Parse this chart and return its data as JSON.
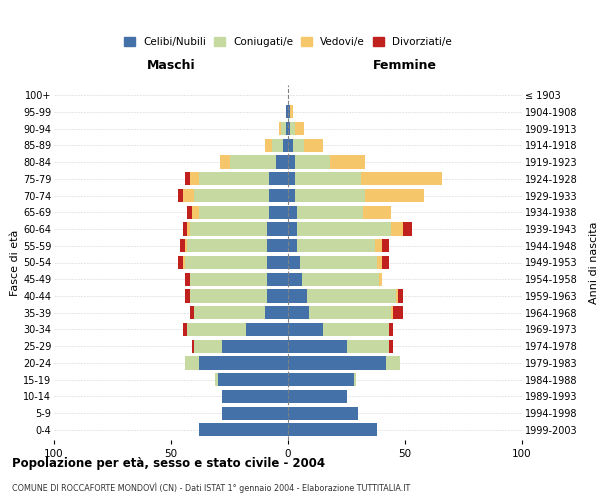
{
  "age_groups": [
    "0-4",
    "5-9",
    "10-14",
    "15-19",
    "20-24",
    "25-29",
    "30-34",
    "35-39",
    "40-44",
    "45-49",
    "50-54",
    "55-59",
    "60-64",
    "65-69",
    "70-74",
    "75-79",
    "80-84",
    "85-89",
    "90-94",
    "95-99",
    "100+"
  ],
  "birth_years": [
    "1999-2003",
    "1994-1998",
    "1989-1993",
    "1984-1988",
    "1979-1983",
    "1974-1978",
    "1969-1973",
    "1964-1968",
    "1959-1963",
    "1954-1958",
    "1949-1953",
    "1944-1948",
    "1939-1943",
    "1934-1938",
    "1929-1933",
    "1924-1928",
    "1919-1923",
    "1914-1918",
    "1909-1913",
    "1904-1908",
    "≤ 1903"
  ],
  "colors": {
    "celibe": "#4472a8",
    "coniugato": "#c5d9a0",
    "vedovo": "#f5c76a",
    "divorziato": "#c0211f"
  },
  "males": {
    "celibe": [
      38,
      28,
      28,
      30,
      38,
      28,
      18,
      10,
      9,
      9,
      9,
      9,
      9,
      8,
      8,
      8,
      5,
      2,
      1,
      1,
      0
    ],
    "coniugato": [
      0,
      0,
      0,
      1,
      6,
      12,
      25,
      30,
      33,
      33,
      35,
      34,
      33,
      30,
      32,
      30,
      20,
      5,
      2,
      0,
      0
    ],
    "vedovo": [
      0,
      0,
      0,
      0,
      0,
      0,
      0,
      0,
      0,
      0,
      1,
      1,
      1,
      3,
      5,
      4,
      4,
      3,
      1,
      0,
      0
    ],
    "divorziato": [
      0,
      0,
      0,
      0,
      0,
      1,
      2,
      2,
      2,
      2,
      2,
      2,
      2,
      2,
      2,
      2,
      0,
      0,
      0,
      0,
      0
    ]
  },
  "females": {
    "nubile": [
      38,
      30,
      25,
      28,
      42,
      25,
      15,
      9,
      8,
      6,
      5,
      4,
      4,
      4,
      3,
      3,
      3,
      2,
      1,
      1,
      0
    ],
    "coniugata": [
      0,
      0,
      0,
      1,
      6,
      18,
      28,
      35,
      38,
      33,
      33,
      33,
      40,
      28,
      30,
      28,
      15,
      5,
      2,
      0,
      0
    ],
    "vedova": [
      0,
      0,
      0,
      0,
      0,
      0,
      0,
      1,
      1,
      1,
      2,
      3,
      5,
      12,
      25,
      35,
      15,
      8,
      4,
      1,
      0
    ],
    "divorziata": [
      0,
      0,
      0,
      0,
      0,
      2,
      2,
      4,
      2,
      0,
      3,
      3,
      4,
      0,
      0,
      0,
      0,
      0,
      0,
      0,
      0
    ]
  },
  "title1": "Popolazione per età, sesso e stato civile - 2004",
  "title2": "COMUNE DI ROCCAFORTE MONDOVÌ (CN) - Dati ISTAT 1° gennaio 2004 - Elaborazione TUTTITALIA.IT",
  "xlabel_left": "Maschi",
  "xlabel_right": "Femmine",
  "ylabel_left": "Fasce di età",
  "ylabel_right": "Anni di nascita",
  "legend_labels": [
    "Celibi/Nubili",
    "Coniugati/e",
    "Vedovi/e",
    "Divorziati/e"
  ],
  "xlim": 100,
  "background_color": "#ffffff"
}
